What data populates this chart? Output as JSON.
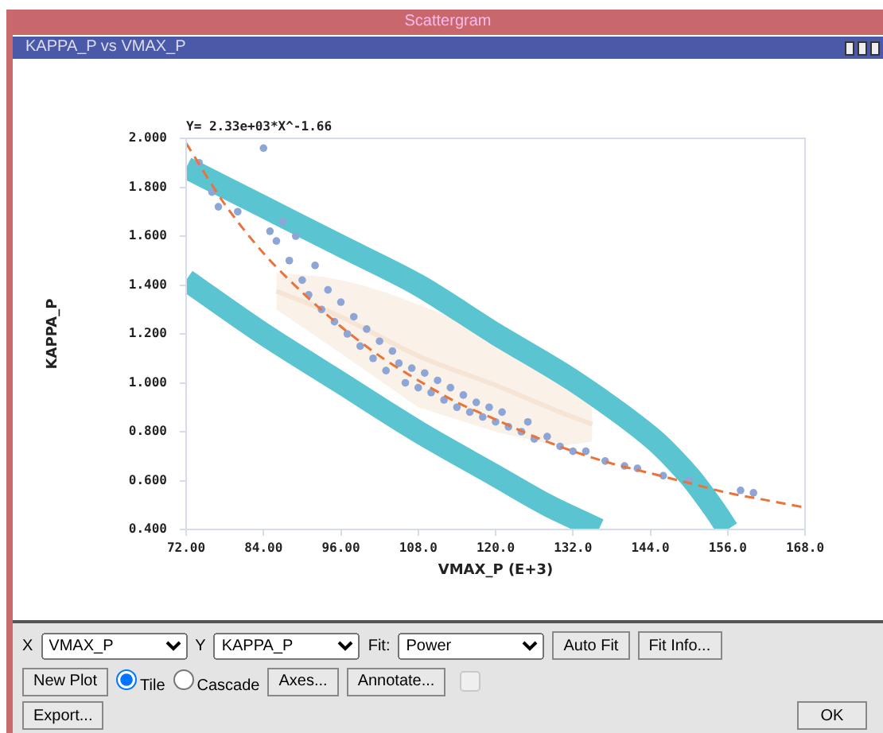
{
  "chart_data": {
    "type": "scatter",
    "title": "Scattergram",
    "subtitle": "KAPPA_P vs VMAX_P",
    "xlabel": "VMAX_P (E+3)",
    "ylabel": "KAPPA_P",
    "annotations": [
      "Y= 2.33e+03*X^-1.66",
      "X",
      "VMAX_P",
      "Y",
      "KAPPA_P",
      "Fit:",
      "Power",
      "Auto Fit",
      "Fit Info...",
      "New Plot",
      "Tile",
      "Cascade",
      "Axes...",
      "Annotate...",
      "Export...",
      "OK"
    ],
    "xlim": [
      72,
      168
    ],
    "ylim": [
      0.4,
      2.0
    ],
    "xticks": [
      {
        "value": 72,
        "label": "72.00"
      },
      {
        "value": 84,
        "label": "84.00"
      },
      {
        "value": 96,
        "label": "96.00"
      },
      {
        "value": 108,
        "label": "108.0"
      },
      {
        "value": 120,
        "label": "120.0"
      },
      {
        "value": 132,
        "label": "132.0"
      },
      {
        "value": 144,
        "label": "144.0"
      },
      {
        "value": 156,
        "label": "156.0"
      },
      {
        "value": 168,
        "label": "168.0"
      }
    ],
    "yticks": [
      {
        "value": 0.4,
        "label": "0.400"
      },
      {
        "value": 0.6,
        "label": "0.600"
      },
      {
        "value": 0.8,
        "label": "0.800"
      },
      {
        "value": 1.0,
        "label": "1.000"
      },
      {
        "value": 1.2,
        "label": "1.200"
      },
      {
        "value": 1.4,
        "label": "1.400"
      },
      {
        "value": 1.6,
        "label": "1.600"
      },
      {
        "value": 1.8,
        "label": "1.800"
      },
      {
        "value": 2.0,
        "label": "2.000"
      }
    ],
    "grid": false,
    "legend": false,
    "series": [
      {
        "type": "line",
        "color": "#f6e4d4",
        "x": [
          86,
          96,
          108,
          120,
          130,
          135
        ],
        "values": [
          1.375,
          1.27,
          1.11,
          0.99,
          0.88,
          0.83
        ],
        "lower": [
          1.3,
          1.12,
          0.9,
          0.8,
          0.74,
          0.76
        ],
        "upper": [
          1.45,
          1.42,
          1.32,
          1.18,
          1.02,
          0.9
        ]
      },
      {
        "type": "line",
        "color": "#5bc4d1",
        "x": [
          72,
          84,
          96,
          108,
          120,
          132,
          144,
          150,
          154,
          156
        ],
        "values": [
          1.88,
          1.72,
          1.56,
          1.4,
          1.2,
          1.01,
          0.78,
          0.62,
          0.48,
          0.4
        ]
      },
      {
        "type": "line",
        "color": "#5bc4d1",
        "x": [
          72,
          84,
          96,
          108,
          120,
          128,
          136
        ],
        "values": [
          1.42,
          1.2,
          1.0,
          0.8,
          0.62,
          0.5,
          0.4
        ]
      },
      {
        "type": "scatter",
        "color": "#8ea6d6",
        "marker": "circle",
        "x": [
          74,
          76,
          77,
          80,
          84,
          85,
          86,
          87,
          88,
          89,
          90,
          91,
          92,
          93,
          94,
          95,
          96,
          97,
          98,
          99,
          100,
          101,
          102,
          103,
          104,
          105,
          106,
          107,
          108,
          109,
          110,
          111,
          112,
          113,
          114,
          115,
          116,
          117,
          118,
          119,
          120,
          121,
          122,
          124,
          125,
          126,
          128,
          130,
          132,
          134,
          137,
          140,
          142,
          146,
          150,
          158,
          160
        ],
        "values": [
          1.9,
          1.78,
          1.72,
          1.7,
          1.96,
          1.62,
          1.58,
          1.66,
          1.5,
          1.6,
          1.42,
          1.36,
          1.48,
          1.3,
          1.38,
          1.25,
          1.33,
          1.2,
          1.27,
          1.15,
          1.22,
          1.1,
          1.17,
          1.05,
          1.13,
          1.08,
          1.0,
          1.06,
          0.98,
          1.04,
          0.96,
          1.01,
          0.93,
          0.98,
          0.9,
          0.95,
          0.88,
          0.92,
          0.86,
          0.9,
          0.84,
          0.88,
          0.82,
          0.8,
          0.84,
          0.77,
          0.78,
          0.74,
          0.72,
          0.72,
          0.68,
          0.66,
          0.65,
          0.62,
          0.6,
          0.56,
          0.55
        ]
      },
      {
        "type": "line",
        "color": "#e8743b",
        "line_style": "dashed",
        "x": [
          72,
          78,
          84,
          90,
          96,
          102,
          108,
          114,
          120,
          126,
          132,
          138,
          144,
          150,
          156,
          162,
          168
        ],
        "values": [
          1.98,
          1.73,
          1.53,
          1.37,
          1.23,
          1.11,
          1.01,
          0.92,
          0.85,
          0.78,
          0.72,
          0.67,
          0.63,
          0.59,
          0.55,
          0.52,
          0.49
        ]
      }
    ]
  }
}
